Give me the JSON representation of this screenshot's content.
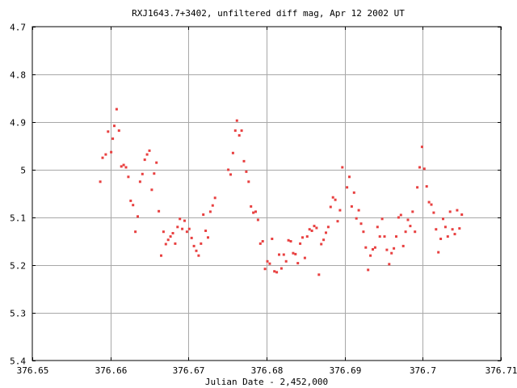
{
  "chart_data": {
    "type": "scatter",
    "title": "RXJ1643.7+3402, unfiltered diff mag, Apr 12 2002 UT",
    "xlabel": "Julian Date - 2,452,000",
    "ylabel": "",
    "xlim": [
      376.65,
      376.71
    ],
    "ylim": [
      4.7,
      5.4
    ],
    "y_inverted": true,
    "grid": true,
    "x_ticks": [
      376.65,
      376.66,
      376.67,
      376.68,
      376.69,
      376.7,
      376.71
    ],
    "x_tick_labels": [
      "376.65",
      "376.66",
      "376.67",
      "376.68",
      "376.69",
      "376.7",
      "376.71"
    ],
    "y_ticks": [
      4.7,
      4.8,
      4.9,
      5.0,
      5.1,
      5.2,
      5.3,
      5.4
    ],
    "y_tick_labels": [
      "4.7",
      "4.8",
      "4.9",
      "5",
      "5.1",
      "5.2",
      "5.3",
      "5.4"
    ],
    "colors": {
      "points": "#e84040",
      "grid": "#a8a8a8",
      "frame": "#000000"
    },
    "points": [
      [
        376.6587,
        5.025
      ],
      [
        376.659,
        4.975
      ],
      [
        376.6594,
        4.968
      ],
      [
        376.6597,
        4.92
      ],
      [
        376.6601,
        4.963
      ],
      [
        376.6603,
        4.935
      ],
      [
        376.6605,
        4.908
      ],
      [
        376.6608,
        4.873
      ],
      [
        376.6611,
        4.918
      ],
      [
        376.6614,
        4.993
      ],
      [
        376.6617,
        4.99
      ],
      [
        376.662,
        4.995
      ],
      [
        376.6623,
        5.015
      ],
      [
        376.6626,
        5.065
      ],
      [
        376.6629,
        5.074
      ],
      [
        376.6632,
        5.13
      ],
      [
        376.6635,
        5.098
      ],
      [
        376.6638,
        5.025
      ],
      [
        376.6641,
        5.009
      ],
      [
        376.6644,
        4.979
      ],
      [
        376.6647,
        4.968
      ],
      [
        376.665,
        4.96
      ],
      [
        376.6653,
        5.042
      ],
      [
        376.6656,
        5.008
      ],
      [
        376.6659,
        4.985
      ],
      [
        376.6662,
        5.087
      ],
      [
        376.6665,
        5.18
      ],
      [
        376.6668,
        5.13
      ],
      [
        376.6671,
        5.156
      ],
      [
        376.6674,
        5.147
      ],
      [
        376.6677,
        5.14
      ],
      [
        376.668,
        5.133
      ],
      [
        376.6683,
        5.155
      ],
      [
        376.6686,
        5.12
      ],
      [
        376.6689,
        5.103
      ],
      [
        376.6692,
        5.124
      ],
      [
        376.6695,
        5.107
      ],
      [
        376.6698,
        5.13
      ],
      [
        376.6701,
        5.124
      ],
      [
        376.6704,
        5.143
      ],
      [
        376.6707,
        5.16
      ],
      [
        376.671,
        5.17
      ],
      [
        376.6713,
        5.18
      ],
      [
        376.6716,
        5.155
      ],
      [
        376.6719,
        5.094
      ],
      [
        376.6722,
        5.128
      ],
      [
        376.6725,
        5.142
      ],
      [
        376.6728,
        5.088
      ],
      [
        376.6731,
        5.075
      ],
      [
        376.6734,
        5.059
      ],
      [
        376.6751,
        5.0
      ],
      [
        376.6754,
        5.01
      ],
      [
        376.6757,
        4.965
      ],
      [
        376.676,
        4.918
      ],
      [
        376.6762,
        4.897
      ],
      [
        376.6765,
        4.928
      ],
      [
        376.6768,
        4.918
      ],
      [
        376.6771,
        4.982
      ],
      [
        376.6774,
        5.004
      ],
      [
        376.6777,
        5.025
      ],
      [
        376.678,
        5.077
      ],
      [
        376.6783,
        5.09
      ],
      [
        376.6786,
        5.088
      ],
      [
        376.6789,
        5.105
      ],
      [
        376.6792,
        5.155
      ],
      [
        376.6795,
        5.15
      ],
      [
        376.6798,
        5.208
      ],
      [
        376.6801,
        5.192
      ],
      [
        376.6804,
        5.197
      ],
      [
        376.6807,
        5.145
      ],
      [
        376.681,
        5.213
      ],
      [
        376.6813,
        5.215
      ],
      [
        376.6816,
        5.178
      ],
      [
        376.6819,
        5.207
      ],
      [
        376.6822,
        5.178
      ],
      [
        376.6825,
        5.192
      ],
      [
        376.6828,
        5.148
      ],
      [
        376.6831,
        5.15
      ],
      [
        376.6834,
        5.175
      ],
      [
        376.6837,
        5.177
      ],
      [
        376.684,
        5.196
      ],
      [
        376.6843,
        5.155
      ],
      [
        376.6846,
        5.142
      ],
      [
        376.6849,
        5.185
      ],
      [
        376.6852,
        5.14
      ],
      [
        376.6855,
        5.125
      ],
      [
        376.6858,
        5.128
      ],
      [
        376.6861,
        5.118
      ],
      [
        376.6864,
        5.122
      ],
      [
        376.6867,
        5.22
      ],
      [
        376.687,
        5.156
      ],
      [
        376.6873,
        5.147
      ],
      [
        376.6876,
        5.132
      ],
      [
        376.6879,
        5.12
      ],
      [
        376.6882,
        5.078
      ],
      [
        376.6885,
        5.058
      ],
      [
        376.6888,
        5.063
      ],
      [
        376.6891,
        5.108
      ],
      [
        376.6894,
        5.085
      ],
      [
        376.6897,
        4.995
      ],
      [
        376.6903,
        5.037
      ],
      [
        376.6906,
        5.015
      ],
      [
        376.6909,
        5.077
      ],
      [
        376.6912,
        5.048
      ],
      [
        376.6915,
        5.102
      ],
      [
        376.6918,
        5.085
      ],
      [
        376.6921,
        5.113
      ],
      [
        376.6924,
        5.13
      ],
      [
        376.6927,
        5.163
      ],
      [
        376.693,
        5.21
      ],
      [
        376.6933,
        5.18
      ],
      [
        376.6936,
        5.167
      ],
      [
        376.6939,
        5.163
      ],
      [
        376.6942,
        5.12
      ],
      [
        376.6945,
        5.14
      ],
      [
        376.6948,
        5.103
      ],
      [
        376.6951,
        5.14
      ],
      [
        376.6954,
        5.168
      ],
      [
        376.6957,
        5.198
      ],
      [
        376.696,
        5.175
      ],
      [
        376.6963,
        5.165
      ],
      [
        376.6966,
        5.14
      ],
      [
        376.6969,
        5.1
      ],
      [
        376.6972,
        5.095
      ],
      [
        376.6975,
        5.16
      ],
      [
        376.6978,
        5.13
      ],
      [
        376.6981,
        5.105
      ],
      [
        376.6984,
        5.118
      ],
      [
        376.6987,
        5.088
      ],
      [
        376.699,
        5.13
      ],
      [
        376.6993,
        5.037
      ],
      [
        376.6996,
        4.995
      ],
      [
        376.6999,
        4.952
      ],
      [
        376.7002,
        4.998
      ],
      [
        376.7005,
        5.035
      ],
      [
        376.7008,
        5.068
      ],
      [
        376.7011,
        5.073
      ],
      [
        376.7014,
        5.09
      ],
      [
        376.7017,
        5.125
      ],
      [
        376.702,
        5.173
      ],
      [
        376.7023,
        5.145
      ],
      [
        376.7026,
        5.103
      ],
      [
        376.7029,
        5.12
      ],
      [
        376.7032,
        5.14
      ],
      [
        376.7035,
        5.088
      ],
      [
        376.7038,
        5.125
      ],
      [
        376.7041,
        5.135
      ],
      [
        376.7044,
        5.085
      ],
      [
        376.7047,
        5.123
      ],
      [
        376.705,
        5.094
      ]
    ]
  }
}
